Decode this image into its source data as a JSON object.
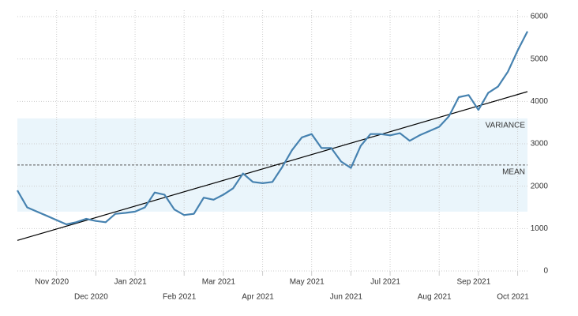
{
  "chart_data": {
    "type": "line",
    "categories": [
      null,
      null,
      null,
      null,
      "Nov 2020",
      null,
      null,
      null,
      "Dec 2020",
      null,
      null,
      null,
      "Jan 2021",
      null,
      null,
      null,
      null,
      "Feb 2021",
      null,
      null,
      null,
      "Mar 2021",
      null,
      null,
      null,
      "Apr 2021",
      null,
      null,
      null,
      null,
      "May 2021",
      null,
      null,
      null,
      "Jun 2021",
      null,
      null,
      null,
      "Jul 2021",
      null,
      null,
      null,
      null,
      "Aug 2021",
      null,
      null,
      null,
      "Sep 2021",
      null,
      null,
      null,
      "Oct 2021",
      null
    ],
    "series": [
      {
        "color": "#4682b0",
        "values": [
          1900,
          1500,
          1400,
          1300,
          1200,
          1100,
          1150,
          1230,
          1180,
          1150,
          1350,
          1370,
          1400,
          1500,
          1850,
          1800,
          1450,
          1320,
          1350,
          1730,
          1680,
          1800,
          1950,
          2300,
          2100,
          2070,
          2100,
          2450,
          2850,
          3150,
          3230,
          2900,
          2900,
          2580,
          2430,
          2950,
          3230,
          3230,
          3200,
          3250,
          3070,
          3200,
          3300,
          3400,
          3650,
          4100,
          4150,
          3800,
          4200,
          4350,
          4700,
          5200,
          5650
        ]
      }
    ],
    "trend": [
      720,
      4230
    ],
    "variance_band": [
      1400,
      3600
    ],
    "mean": 2500,
    "annotations": [
      "VARIANCE",
      "MEAN"
    ],
    "ylim": [
      0,
      6000
    ],
    "yticks": [
      0,
      1000,
      2000,
      3000,
      4000,
      5000,
      6000
    ],
    "grid": true
  }
}
